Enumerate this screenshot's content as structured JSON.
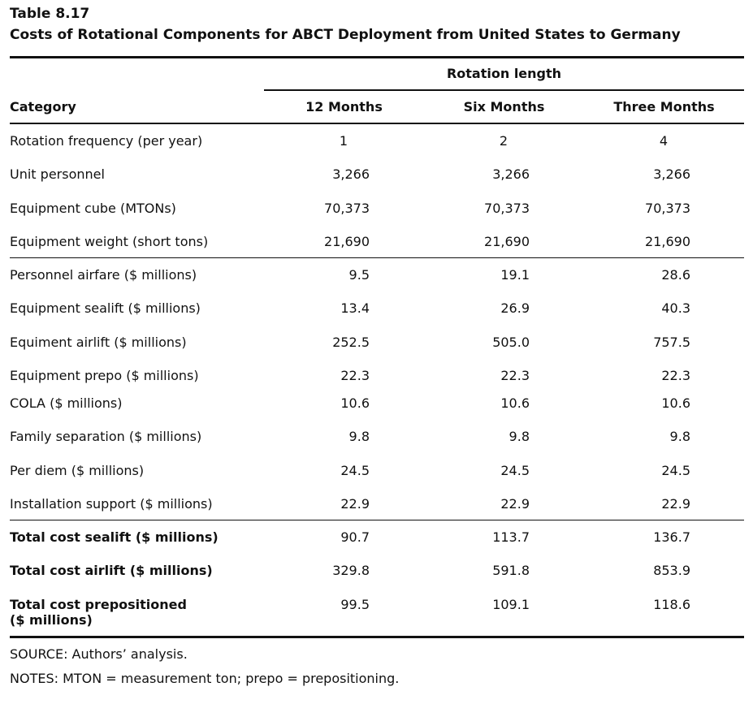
{
  "table_number": "Table 8.17",
  "title": "Costs of Rotational Components for ABCT Deployment from United States to Germany",
  "group_header": "Rotation length",
  "columns": [
    "Category",
    "12 Months",
    "Six Months",
    "Three Months"
  ],
  "rows": [
    {
      "label": "Rotation frequency (per year)",
      "values": [
        "1",
        "2",
        "4"
      ],
      "bold": false
    },
    {
      "label": "Unit personnel",
      "values": [
        "3,266",
        "3,266",
        "3,266"
      ],
      "bold": false
    },
    {
      "label": "Equipment cube (MTONs)",
      "values": [
        "70,373",
        "70,373",
        "70,373"
      ],
      "bold": false
    },
    {
      "label": "Equipment weight (short tons)",
      "values": [
        "21,690",
        "21,690",
        "21,690"
      ],
      "bold": false
    },
    {
      "label": "Personnel airfare ($ millions)",
      "values": [
        "9.5",
        "19.1",
        "28.6"
      ],
      "bold": false
    },
    {
      "label": "Equipment sealift ($ millions)",
      "values": [
        "13.4",
        "26.9",
        "40.3"
      ],
      "bold": false
    },
    {
      "label": "Equiment airlift ($ millions)",
      "values": [
        "252.5",
        "505.0",
        "757.5"
      ],
      "bold": false
    },
    {
      "label": "Equipment prepo ($ millions)",
      "values": [
        "22.3",
        "22.3",
        "22.3"
      ],
      "bold": false
    },
    {
      "label": "COLA ($ millions)",
      "values": [
        "10.6",
        "10.6",
        "10.6"
      ],
      "bold": false
    },
    {
      "label": "Family separation ($ millions)",
      "values": [
        "9.8",
        "9.8",
        "9.8"
      ],
      "bold": false
    },
    {
      "label": "Per diem ($ millions)",
      "values": [
        "24.5",
        "24.5",
        "24.5"
      ],
      "bold": false
    },
    {
      "label": "Installation support ($ millions)",
      "values": [
        "22.9",
        "22.9",
        "22.9"
      ],
      "bold": false
    },
    {
      "label": "Total cost sealift ($ millions)",
      "values": [
        "90.7",
        "113.7",
        "136.7"
      ],
      "bold": true
    },
    {
      "label": "Total cost airlift ($ millions)",
      "values": [
        "329.8",
        "591.8",
        "853.9"
      ],
      "bold": true
    },
    {
      "label": "Total cost prepositioned",
      "label_line2": "($ millions)",
      "values": [
        "99.5",
        "109.1",
        "118.6"
      ],
      "bold": true
    }
  ],
  "footnotes": {
    "source": "SOURCE: Authors’ analysis.",
    "notes": "NOTES: MTON = measurement ton; prepo = prepositioning."
  }
}
